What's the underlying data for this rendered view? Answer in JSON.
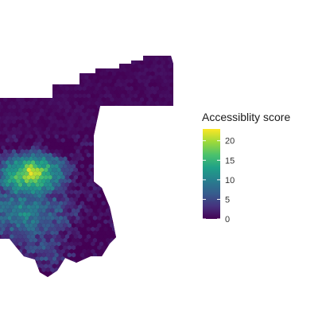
{
  "map": {
    "type": "hexbin-choropleth",
    "color_scale": "viridis",
    "colors": [
      "#440154",
      "#46327e",
      "#365c8d",
      "#277f8e",
      "#1fa187",
      "#4ac16d",
      "#a0da39",
      "#fde725"
    ],
    "background": "#ffffff"
  },
  "legend": {
    "title": "Accessiblity score",
    "min": 0,
    "max": 23,
    "ticks": [
      {
        "value": 20,
        "label": "20"
      },
      {
        "value": 15,
        "label": "15"
      },
      {
        "value": 10,
        "label": "10"
      },
      {
        "value": 5,
        "label": "5"
      },
      {
        "value": 0,
        "label": "0"
      }
    ]
  }
}
